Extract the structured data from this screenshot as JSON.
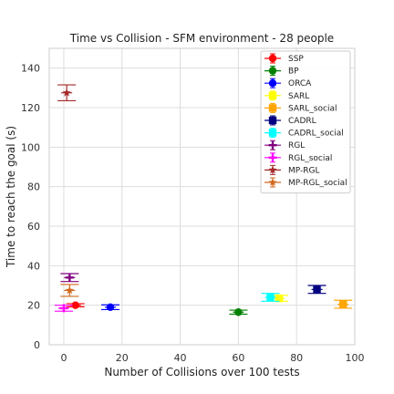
{
  "chart_data": {
    "type": "scatter",
    "title": "Time vs Collision - SFM environment - 28 people",
    "xlabel": "Number of Collisions over 100 tests",
    "ylabel": "Time to reach the goal (s)",
    "xlim": [
      -5,
      100
    ],
    "ylim": [
      0,
      150
    ],
    "xticks": [
      0,
      20,
      40,
      60,
      80,
      100
    ],
    "yticks": [
      0,
      20,
      40,
      60,
      80,
      100,
      120,
      140
    ],
    "grid": true,
    "legend_position": "top-right",
    "series": [
      {
        "name": "SSP",
        "x": 4,
        "y": 20.0,
        "yerr": 0.8,
        "color": "#ff0000",
        "marker": "circle"
      },
      {
        "name": "BP",
        "x": 60,
        "y": 16.5,
        "yerr": 1.0,
        "color": "#008000",
        "marker": "circle"
      },
      {
        "name": "ORCA",
        "x": 16,
        "y": 19.0,
        "yerr": 1.2,
        "color": "#0000ff",
        "marker": "circle"
      },
      {
        "name": "SARL",
        "x": 74,
        "y": 23.5,
        "yerr": 1.5,
        "color": "#ffff00",
        "marker": "square"
      },
      {
        "name": "SARL_social",
        "x": 96,
        "y": 20.5,
        "yerr": 2.0,
        "color": "#ffa500",
        "marker": "square"
      },
      {
        "name": "CADRL",
        "x": 87,
        "y": 28.0,
        "yerr": 2.0,
        "color": "#000080",
        "marker": "square"
      },
      {
        "name": "CADRL_social",
        "x": 71,
        "y": 24.0,
        "yerr": 2.0,
        "color": "#00ffff",
        "marker": "square"
      },
      {
        "name": "RGL",
        "x": 2,
        "y": 34.0,
        "yerr": 2.0,
        "color": "#800080",
        "marker": "plus"
      },
      {
        "name": "RGL_social",
        "x": 0,
        "y": 18.5,
        "yerr": 1.5,
        "color": "#ff00ff",
        "marker": "plus"
      },
      {
        "name": "MP-RGL",
        "x": 1,
        "y": 127.5,
        "yerr": 4.0,
        "color": "#a52a2a",
        "marker": "star"
      },
      {
        "name": "MP-RGL_social",
        "x": 2,
        "y": 27.5,
        "yerr": 3.0,
        "color": "#d2691e",
        "marker": "star"
      }
    ]
  }
}
